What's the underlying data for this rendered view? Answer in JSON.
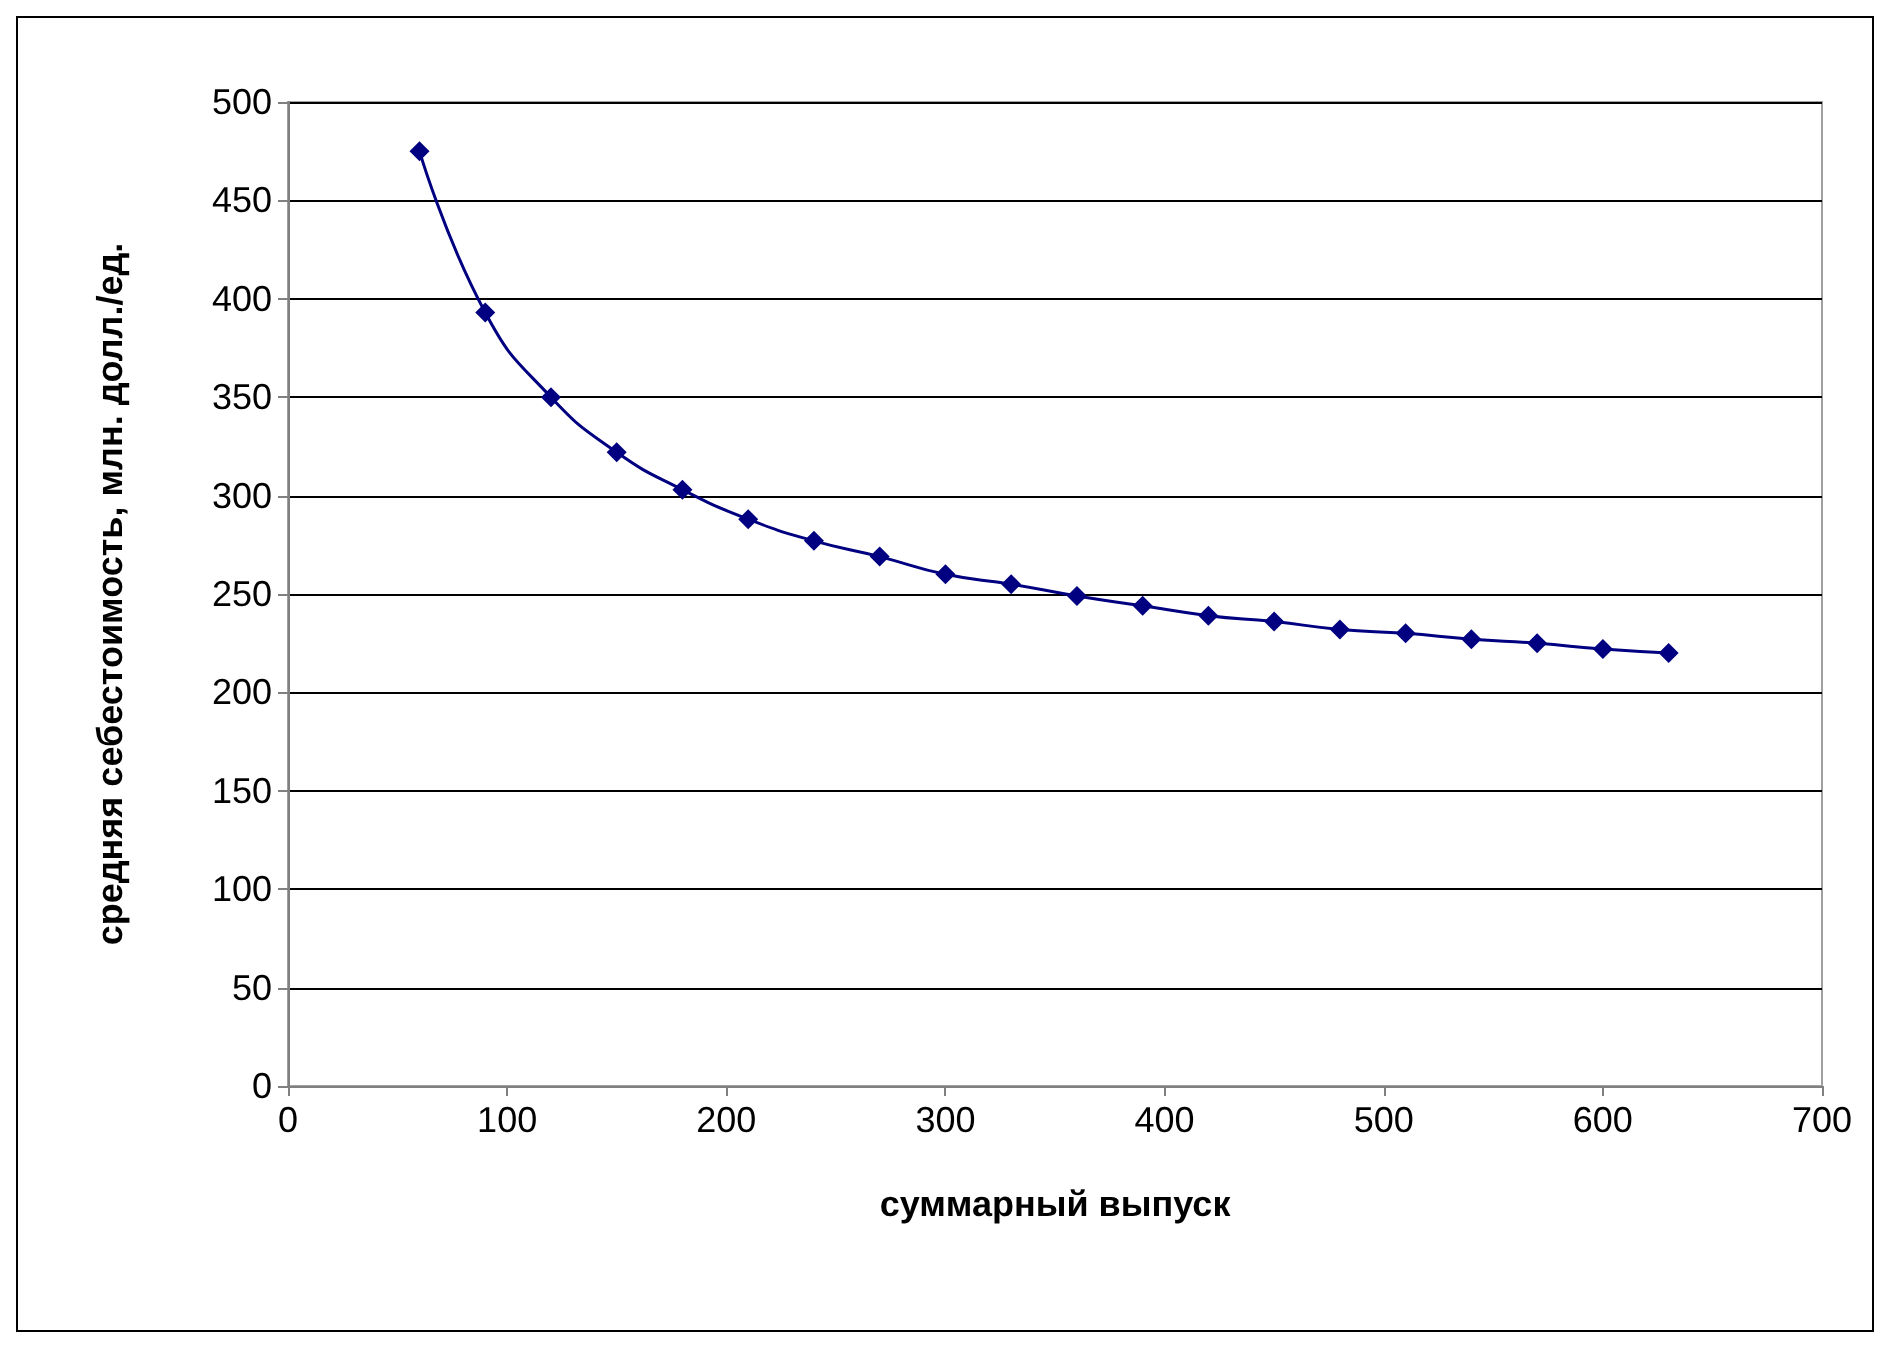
{
  "chart_data": {
    "type": "line",
    "xlabel": "суммарный выпуск",
    "ylabel": "средняя себестоимость, млн. долл./ед.",
    "x": [
      60,
      90,
      120,
      150,
      180,
      210,
      240,
      270,
      300,
      330,
      360,
      390,
      420,
      450,
      480,
      510,
      540,
      570,
      600,
      630
    ],
    "series": [
      {
        "color": "#000080",
        "values": [
          475,
          393,
          350,
          322,
          303,
          288,
          277,
          269,
          260,
          255,
          249,
          244,
          239,
          236,
          232,
          230,
          227,
          225,
          222,
          220
        ]
      }
    ],
    "xlim": [
      0,
      700
    ],
    "xticks": [
      0,
      100,
      200,
      300,
      400,
      500,
      600,
      700
    ],
    "ylim": [
      0,
      500
    ],
    "yticks": [
      0,
      50,
      100,
      150,
      200,
      250,
      300,
      350,
      400,
      450,
      500
    ],
    "grid": "y",
    "marker": "diamond",
    "line_style": "solid"
  }
}
